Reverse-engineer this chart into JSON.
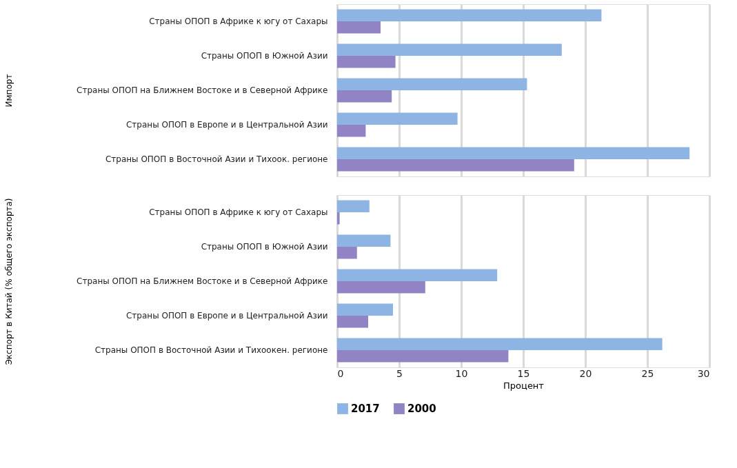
{
  "chart_data": [
    {
      "type": "bar",
      "orientation": "horizontal",
      "ylabel": "Импорт",
      "categories": [
        "Страны ОПОП в Африке к югу от Сахары",
        "Страны ОПОП в Южной Азии",
        "Страны ОПОП на Ближнем Востоке и в Северной Африке",
        "Страны ОПОП в Европе и в Центральной Азии",
        "Страны ОПОП в Восточной Азии и Тихоок. регионе"
      ],
      "series": [
        {
          "name": "2017",
          "color": "#8db4e2",
          "values": [
            21.3,
            18.1,
            15.3,
            9.7,
            28.4
          ]
        },
        {
          "name": "2000",
          "color": "#9283c4",
          "values": [
            3.5,
            4.7,
            4.4,
            2.3,
            19.1
          ]
        }
      ],
      "xlim": [
        0,
        30
      ],
      "xticks": [
        0,
        5,
        10,
        15,
        20,
        25,
        30
      ],
      "grid": "x",
      "tick_labels": "y",
      "legend": "bottom"
    },
    {
      "type": "bar",
      "orientation": "horizontal",
      "ylabel": "Экспорт в Китай (% общего экспорта)",
      "xlabel": "Процент",
      "categories": [
        "Страны ОПОП в Африке к югу от Сахары",
        "Страны ОПОП в Южной Азии",
        "Страны ОПОП на Ближнем Востоке и в Северной Африке",
        "Страны ОПОП в Европе и в Центральной Азии",
        "Страны ОПОП в Восточной Азии и Тихоокен. регионе"
      ],
      "series": [
        {
          "name": "2017",
          "color": "#8db4e2",
          "values": [
            2.6,
            4.3,
            12.9,
            4.5,
            26.2
          ]
        },
        {
          "name": "2000",
          "color": "#9283c4",
          "values": [
            0.2,
            1.6,
            7.1,
            2.5,
            13.8
          ]
        }
      ],
      "xlim": [
        0,
        30
      ],
      "xticks": [
        0,
        5,
        10,
        15,
        20,
        25,
        30
      ],
      "grid": "x",
      "legend": "bottom"
    }
  ]
}
